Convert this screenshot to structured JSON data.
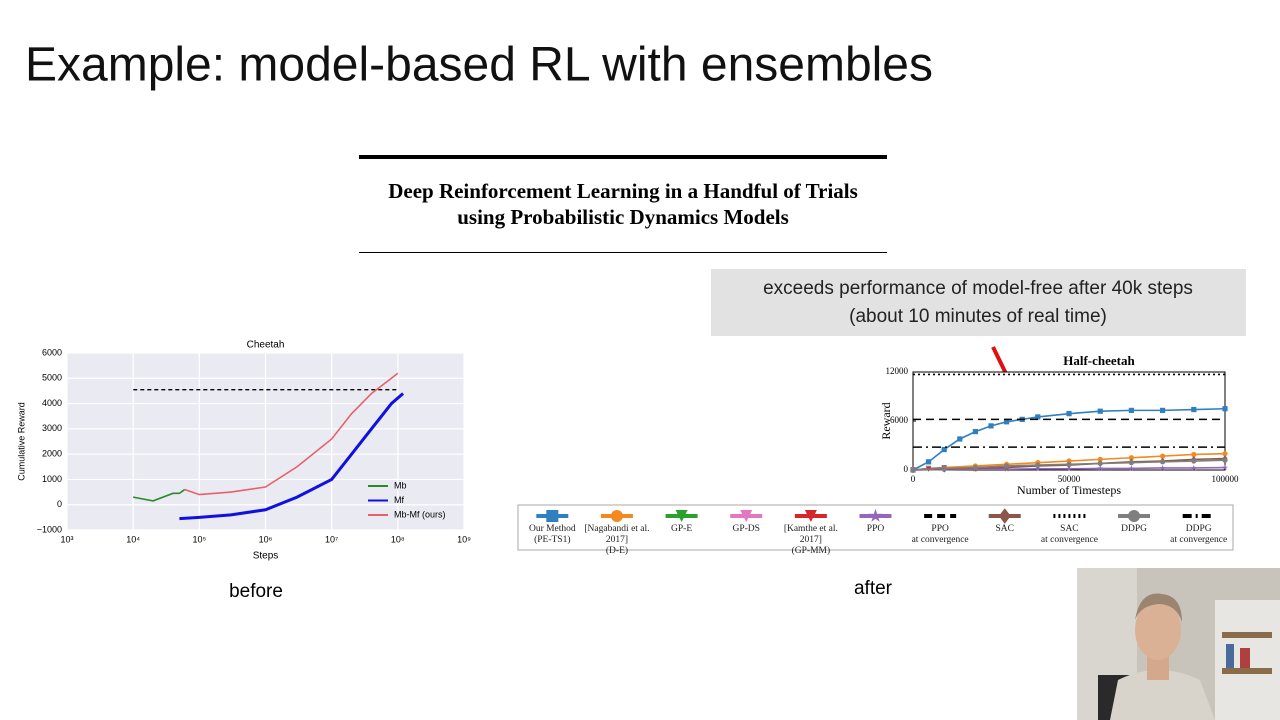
{
  "slide_title": "Example: model-based RL with ensembles",
  "paper": {
    "title_lines": [
      "Deep Reinforcement Learning in a Handful of Trials",
      "using Probabilistic Dynamics Models"
    ]
  },
  "callout": {
    "lines": [
      "exceeds performance of model-free after 40k steps",
      "(about 10 minutes of real time)"
    ]
  },
  "captions": {
    "before": "before",
    "after": "after"
  },
  "chart_data": [
    {
      "type": "line",
      "title": "Cheetah",
      "xlabel": "Steps",
      "ylabel": "Cumulative Reward",
      "xscale": "log",
      "xlim": [
        1000,
        1000000000
      ],
      "ylim": [
        -1000,
        6000
      ],
      "xticks": [
        {
          "value": 1000,
          "label": "10³"
        },
        {
          "value": 10000,
          "label": "10⁴"
        },
        {
          "value": 100000,
          "label": "10⁵"
        },
        {
          "value": 1000000,
          "label": "10⁶"
        },
        {
          "value": 10000000,
          "label": "10⁷"
        },
        {
          "value": 100000000,
          "label": "10⁸"
        },
        {
          "value": 1000000000,
          "label": "10⁹"
        }
      ],
      "yticks": [
        {
          "value": -1000,
          "label": "−1000"
        },
        0,
        1000,
        2000,
        3000,
        4000,
        5000,
        6000
      ],
      "grid": true,
      "legend": "lower right",
      "reference_line": 4550,
      "series": [
        {
          "name": "Mb",
          "color": "#2a8a2a",
          "x": [
            10000,
            20000,
            40000,
            50000,
            60000
          ],
          "values": [
            300,
            150,
            450,
            450,
            600
          ]
        },
        {
          "name": "Mf",
          "color": "#1010e0",
          "x": [
            50000,
            100000,
            300000,
            1000000,
            3000000,
            10000000,
            20000000,
            40000000,
            80000000,
            120000000
          ],
          "values": [
            -550,
            -500,
            -400,
            -200,
            300,
            1000,
            2000,
            3000,
            4000,
            4400
          ]
        },
        {
          "name": "Mb-Mf (ours)",
          "color": "#e8606a",
          "x": [
            60000,
            100000,
            300000,
            1000000,
            3000000,
            10000000,
            20000000,
            40000000,
            80000000,
            100000000
          ],
          "values": [
            600,
            400,
            500,
            700,
            1500,
            2600,
            3600,
            4400,
            5000,
            5200
          ]
        }
      ]
    },
    {
      "type": "line",
      "title": "Half-cheetah",
      "xlabel": "Number of Timesteps",
      "ylabel": "Reward",
      "xscale": "linear",
      "xlim": [
        0,
        100000
      ],
      "ylim": [
        0,
        12000
      ],
      "xticks": [
        0,
        50000,
        100000
      ],
      "yticks": [
        0,
        6000,
        12000
      ],
      "grid": false,
      "legend": "below",
      "series": [
        {
          "name": "Our Method\n(PE-TS1)",
          "color": "#2f7fc1",
          "marker": "square",
          "x": [
            0,
            5000,
            10000,
            15000,
            20000,
            25000,
            30000,
            35000,
            40000,
            50000,
            60000,
            70000,
            80000,
            90000,
            100000
          ],
          "values": [
            0,
            1000,
            2500,
            3800,
            4700,
            5400,
            5900,
            6200,
            6500,
            6900,
            7200,
            7300,
            7300,
            7400,
            7500
          ]
        },
        {
          "name": "[Nagabandi et al. 2017]\n(D-E)",
          "color": "#f28a1e",
          "marker": "circle",
          "x": [
            0,
            10000,
            20000,
            30000,
            40000,
            50000,
            60000,
            70000,
            80000,
            90000,
            100000
          ],
          "values": [
            0,
            300,
            500,
            700,
            900,
            1100,
            1300,
            1500,
            1700,
            1900,
            2000
          ]
        },
        {
          "name": "GP-E",
          "color": "#2ca02c",
          "marker": "triangle",
          "x": [
            0,
            5000,
            10000
          ],
          "values": [
            0,
            200,
            300
          ]
        },
        {
          "name": "GP-DS",
          "color": "#e377c2",
          "marker": "triangle",
          "x": [
            0,
            5000,
            10000
          ],
          "values": [
            0,
            150,
            250
          ]
        },
        {
          "name": "[Kamthe et al. 2017]\n(GP-MM)",
          "color": "#d62728",
          "marker": "triangle",
          "x": [
            0,
            5000,
            10000
          ],
          "values": [
            0,
            100,
            200
          ]
        },
        {
          "name": "PPO",
          "color": "#9467bd",
          "marker": "star",
          "x": [
            0,
            10000,
            20000,
            30000,
            40000,
            50000,
            60000,
            70000,
            80000,
            90000,
            100000
          ],
          "values": [
            0,
            50,
            100,
            100,
            150,
            150,
            200,
            200,
            250,
            250,
            300
          ]
        },
        {
          "name": "PPO\nat convergence",
          "color": "#000000",
          "dash": "dashed",
          "level": 6200
        },
        {
          "name": "SAC",
          "color": "#8c564b",
          "marker": "diamond",
          "x": [
            0,
            10000,
            20000,
            30000,
            40000,
            50000,
            60000,
            70000,
            80000,
            90000,
            100000
          ],
          "values": [
            0,
            100,
            200,
            300,
            500,
            600,
            800,
            1000,
            1100,
            1300,
            1400
          ]
        },
        {
          "name": "SAC\nat convergence",
          "color": "#000000",
          "dash": "dotted",
          "level": 11700
        },
        {
          "name": "DDPG",
          "color": "#7f7f7f",
          "marker": "circle",
          "x": [
            0,
            10000,
            20000,
            30000,
            40000,
            50000,
            60000,
            70000,
            80000,
            90000,
            100000
          ],
          "values": [
            0,
            200,
            300,
            500,
            600,
            700,
            800,
            900,
            1000,
            1100,
            1200
          ]
        },
        {
          "name": "DDPG\nat convergence",
          "color": "#000000",
          "dash": "dashdot",
          "level": 2800
        }
      ]
    }
  ]
}
